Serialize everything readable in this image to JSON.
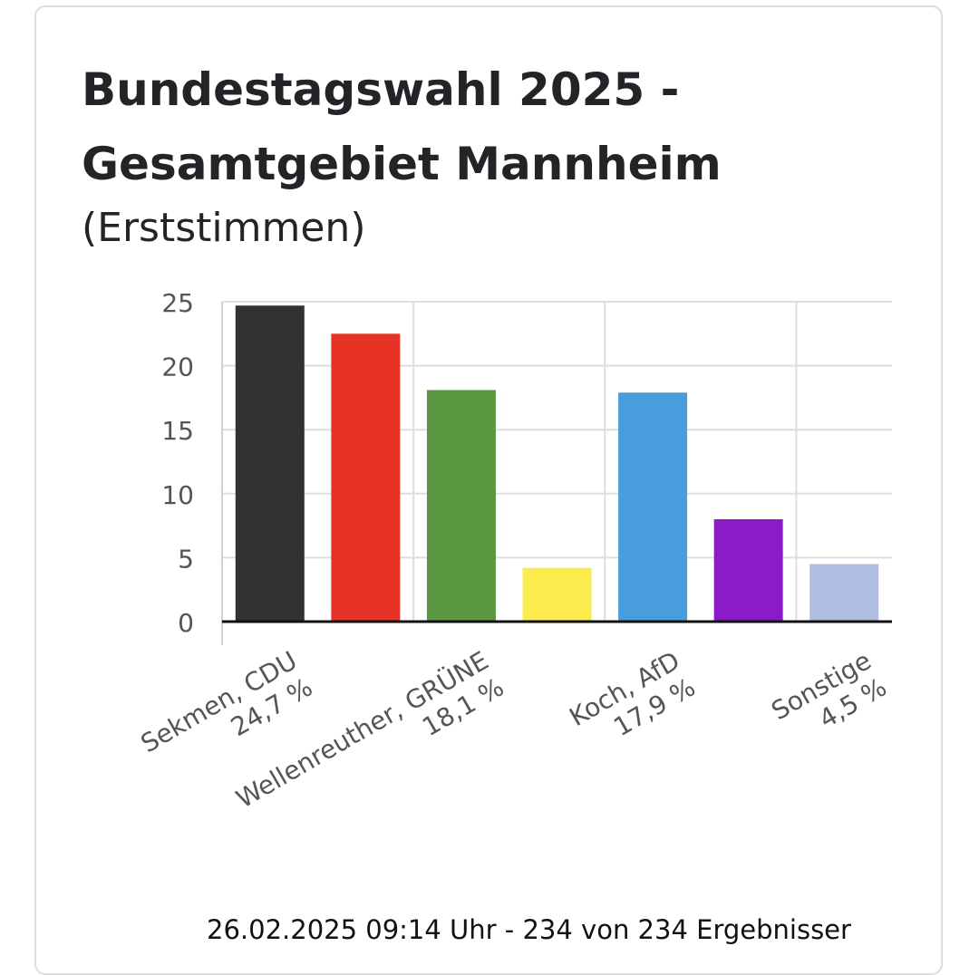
{
  "header": {
    "title_line1": "Bundestagswahl 2025 -",
    "title_line2": "Gesamtgebiet Mannheim",
    "subtitle": "(Erststimmen)"
  },
  "footer": {
    "status": "26.02.2025 09:14 Uhr - 234 von 234 Ergebnisser"
  },
  "chart_data": {
    "type": "bar",
    "title": "Bundestagswahl 2025 - Gesamtgebiet Mannheim (Erststimmen)",
    "categories": [
      "Sekmen, CDU",
      "",
      "Wellenreuther, GRÜNE",
      "",
      "Koch, AfD",
      "",
      "Sonstige"
    ],
    "category_value_labels": [
      "24,7 %",
      "",
      "18,1 %",
      "",
      "17,9 %",
      "",
      "4,5 %"
    ],
    "values": [
      24.7,
      22.5,
      18.1,
      4.2,
      17.9,
      8.0,
      4.5
    ],
    "colors": [
      "#323232",
      "#e63225",
      "#5b9640",
      "#fbeb4c",
      "#4a9ddc",
      "#8b1bc8",
      "#aebde0"
    ],
    "ylim": [
      0,
      25
    ],
    "yticks": [
      0,
      5,
      10,
      15,
      20,
      25
    ],
    "grid": true,
    "xlabel": "",
    "ylabel": ""
  }
}
